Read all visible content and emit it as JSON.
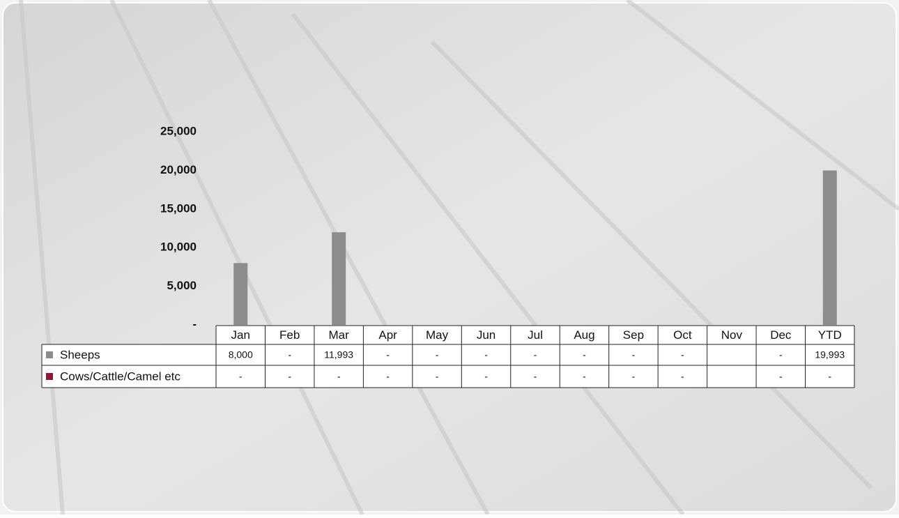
{
  "chart_data": {
    "type": "bar",
    "categories": [
      "Jan",
      "Feb",
      "Mar",
      "Apr",
      "May",
      "Jun",
      "Jul",
      "Aug",
      "Sep",
      "Oct",
      "Nov",
      "Dec",
      "YTD"
    ],
    "series": [
      {
        "name": "Sheeps",
        "color": "#8c8c8c",
        "values": [
          8000,
          0,
          11993,
          0,
          0,
          0,
          0,
          0,
          0,
          0,
          null,
          0,
          19993
        ],
        "value_labels": [
          "8,000",
          "-",
          "11,993",
          "-",
          "-",
          "-",
          "-",
          "-",
          "-",
          "-",
          null,
          "-",
          "19,993"
        ]
      },
      {
        "name": "Cows/Cattle/Camel etc",
        "color": "#8b1a3a",
        "values": [
          0,
          0,
          0,
          0,
          0,
          0,
          0,
          0,
          0,
          0,
          null,
          0,
          0
        ],
        "value_labels": [
          "-",
          "-",
          "-",
          "-",
          "-",
          "-",
          "-",
          "-",
          "-",
          "-",
          null,
          "-",
          "-"
        ]
      }
    ],
    "ylim": [
      0,
      25000
    ],
    "yticks": [
      {
        "value": 0,
        "label": "-"
      },
      {
        "value": 5000,
        "label": "5,000"
      },
      {
        "value": 10000,
        "label": "10,000"
      },
      {
        "value": 15000,
        "label": "15,000"
      },
      {
        "value": 20000,
        "label": "20,000"
      },
      {
        "value": 25000,
        "label": "25,000"
      }
    ],
    "grid": false
  }
}
